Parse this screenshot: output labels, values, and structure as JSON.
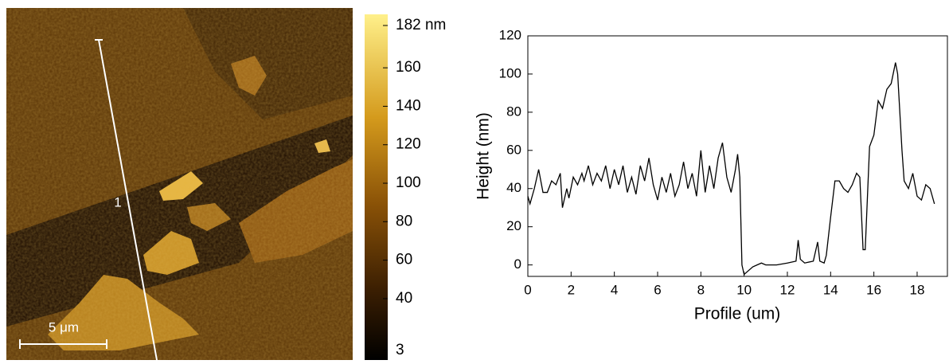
{
  "afm_image": {
    "scale_bar_label": "5 μm",
    "profile_label": "1",
    "colorbar": {
      "ylim": [
        3,
        182
      ],
      "yticks": [
        {
          "value": 182,
          "label": "182 nm"
        },
        160,
        140,
        120,
        100,
        80,
        60,
        40,
        3
      ]
    }
  },
  "chart_data": {
    "type": "line",
    "xlabel": "Profile (um)",
    "ylabel": "Height (nm)",
    "color": "#000000",
    "x": [
      0,
      0.1,
      0.3,
      0.5,
      0.7,
      0.9,
      1.1,
      1.3,
      1.5,
      1.6,
      1.8,
      1.9,
      2.1,
      2.3,
      2.5,
      2.6,
      2.8,
      3.0,
      3.2,
      3.4,
      3.6,
      3.8,
      4.0,
      4.2,
      4.4,
      4.6,
      4.8,
      5.0,
      5.2,
      5.4,
      5.6,
      5.8,
      6.0,
      6.2,
      6.4,
      6.6,
      6.8,
      7.0,
      7.2,
      7.4,
      7.6,
      7.8,
      8.0,
      8.2,
      8.4,
      8.6,
      8.8,
      9.0,
      9.2,
      9.4,
      9.6,
      9.7,
      9.8,
      9.9,
      10.0,
      10.2,
      10.4,
      10.6,
      10.8,
      11.0,
      11.5,
      12.0,
      12.4,
      12.5,
      12.6,
      12.8,
      13.2,
      13.4,
      13.5,
      13.7,
      13.8,
      14.0,
      14.2,
      14.4,
      14.6,
      14.8,
      15.0,
      15.2,
      15.35,
      15.5,
      15.6,
      15.8,
      16.0,
      16.2,
      16.4,
      16.6,
      16.8,
      17.0,
      17.1,
      17.3,
      17.4,
      17.6,
      17.8,
      18.0,
      18.2,
      18.4,
      18.6,
      18.8
    ],
    "values": [
      36,
      32,
      40,
      50,
      38,
      38,
      44,
      42,
      48,
      30,
      40,
      35,
      46,
      42,
      48,
      44,
      52,
      42,
      48,
      44,
      52,
      40,
      50,
      42,
      52,
      38,
      46,
      37,
      52,
      44,
      56,
      42,
      34,
      46,
      38,
      48,
      36,
      42,
      54,
      40,
      48,
      36,
      60,
      38,
      52,
      40,
      56,
      64,
      46,
      38,
      50,
      58,
      46,
      0,
      -5,
      -3,
      -1,
      0,
      1,
      0,
      0,
      1,
      2,
      13,
      3,
      1,
      2,
      12,
      2,
      1,
      5,
      25,
      44,
      44,
      40,
      38,
      42,
      48,
      46,
      8,
      8,
      62,
      68,
      86,
      82,
      92,
      95,
      106,
      100,
      60,
      44,
      40,
      48,
      36,
      34,
      42,
      40,
      32
    ],
    "xlim": [
      0,
      19.4
    ],
    "ylim": [
      -6,
      120
    ],
    "xticks": [
      0,
      2,
      4,
      6,
      8,
      10,
      12,
      14,
      16,
      18
    ],
    "yticks": [
      0,
      20,
      40,
      60,
      80,
      100,
      120
    ]
  }
}
